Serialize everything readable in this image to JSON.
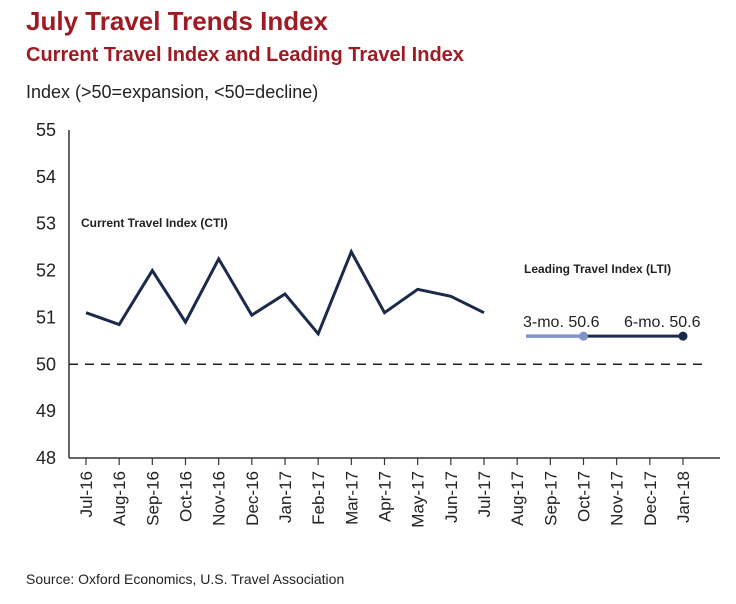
{
  "header": {
    "title": "July Travel Trends Index",
    "subtitle": "Current Travel Index and Leading Travel Index",
    "axis_note": "Index (>50=expansion, <50=decline)"
  },
  "footer": {
    "source": "Source: Oxford Economics, U.S. Travel Association"
  },
  "colors": {
    "title": "#9e1b24",
    "cti_line": "#1b2a4a",
    "lti_3mo": "#7f93c6",
    "lti_6mo": "#1b2a4a",
    "reference_line": "#222222"
  },
  "chart_data": {
    "type": "line",
    "categories": [
      "Jul-16",
      "Aug-16",
      "Sep-16",
      "Oct-16",
      "Nov-16",
      "Dec-16",
      "Jan-17",
      "Feb-17",
      "Mar-17",
      "Apr-17",
      "May-17",
      "Jun-17",
      "Jul-17",
      "Aug-17",
      "Sep-17",
      "Oct-17",
      "Nov-17",
      "Dec-17",
      "Jan-18"
    ],
    "ylim": [
      48,
      55
    ],
    "yticks": [
      48,
      49,
      50,
      51,
      52,
      53,
      54,
      55
    ],
    "reference_line": {
      "y": 50,
      "style": "dashed"
    },
    "grid": false,
    "series": [
      {
        "name": "Current Travel Index (CTI)",
        "x": [
          "Jul-16",
          "Aug-16",
          "Sep-16",
          "Oct-16",
          "Nov-16",
          "Dec-16",
          "Jan-17",
          "Feb-17",
          "Mar-17",
          "Apr-17",
          "May-17",
          "Jun-17",
          "Jul-17"
        ],
        "values": [
          51.1,
          50.85,
          52.0,
          50.9,
          52.25,
          51.05,
          51.5,
          50.65,
          52.4,
          51.1,
          51.6,
          51.45,
          51.1
        ]
      },
      {
        "name": "Leading Travel Index (LTI)",
        "segments": [
          {
            "label": "3-mo. 50.6",
            "from": "Aug-17",
            "to": "Oct-17",
            "value": 50.6
          },
          {
            "label": "6-mo. 50.6",
            "from": "Oct-17",
            "to": "Jan-18",
            "value": 50.6
          }
        ]
      }
    ],
    "annotations": [
      {
        "text": "Current Travel Index (CTI)",
        "near": "CTI series"
      },
      {
        "text": "Leading Travel Index (LTI)",
        "near": "LTI series"
      }
    ]
  }
}
